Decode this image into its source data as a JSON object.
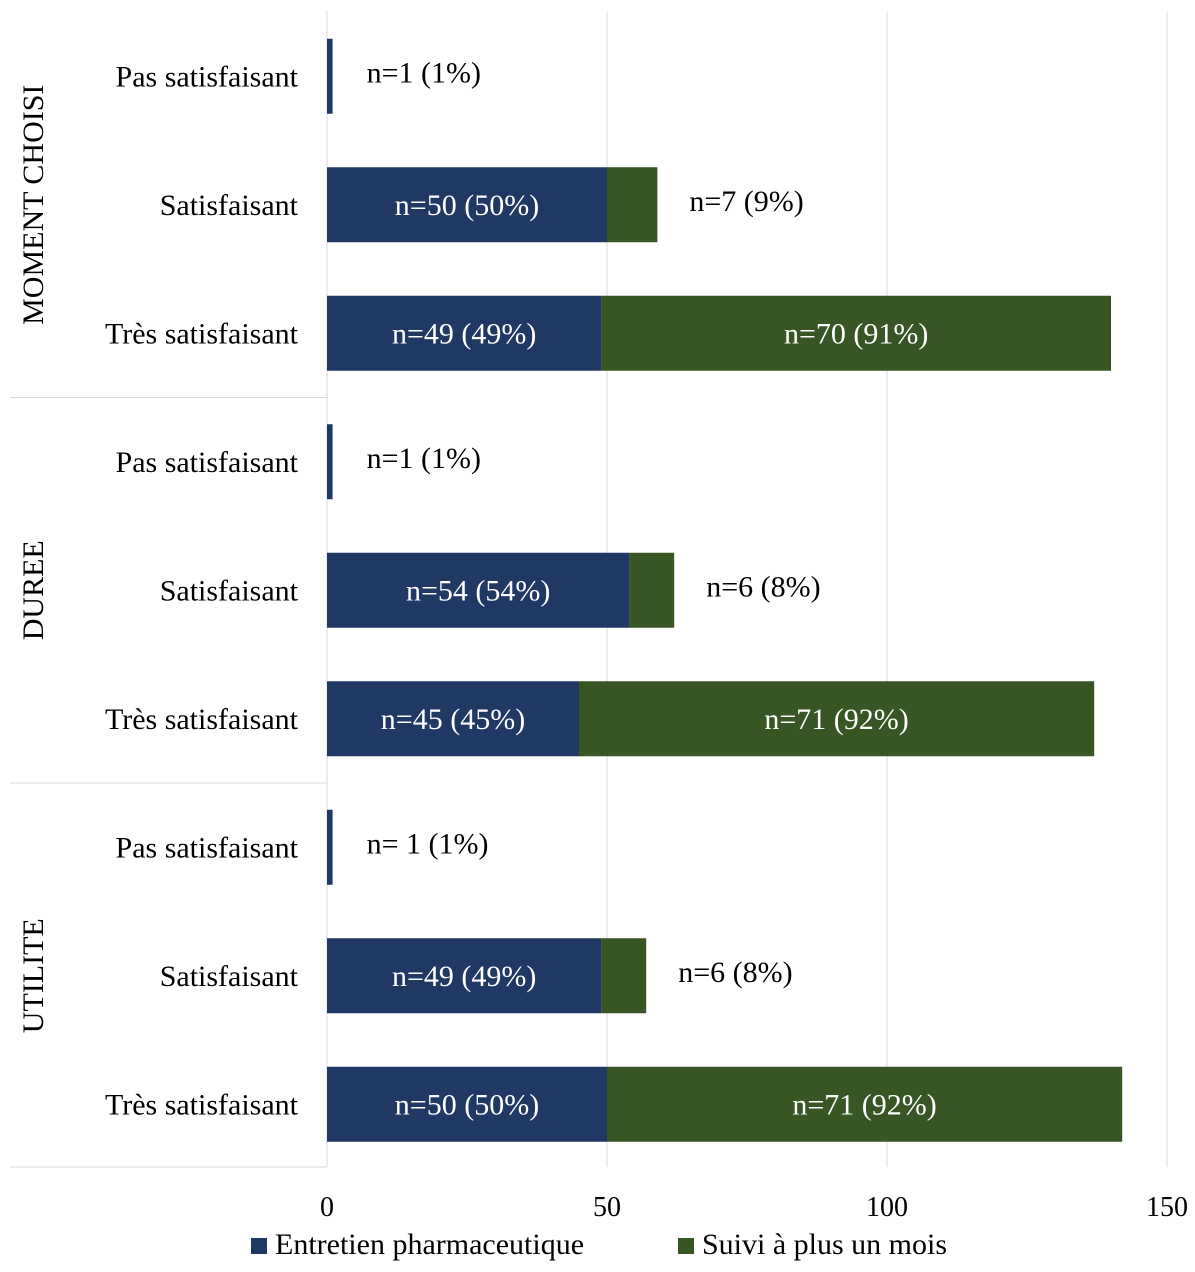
{
  "chart_data": {
    "type": "bar",
    "orientation": "horizontal",
    "stacked": true,
    "xlim": [
      0,
      150
    ],
    "xticks": [
      0,
      50,
      100,
      150
    ],
    "grid": true,
    "legend_position": "bottom",
    "series": [
      {
        "name": "Entretien pharmaceutique",
        "color": "#1f3864"
      },
      {
        "name": "Suivi à plus un mois",
        "color": "#375623"
      }
    ],
    "groups": [
      {
        "label": "MOMENT CHOISI",
        "rows": [
          {
            "label": "Pas satisfaisant",
            "values": [
              1,
              0
            ],
            "labels": [
              "n=1 (1%)",
              ""
            ]
          },
          {
            "label": "Satisfaisant",
            "values": [
              50,
              9
            ],
            "labels": [
              "n=50 (50%)",
              "n=7 (9%)"
            ]
          },
          {
            "label": "Très satisfaisant",
            "values": [
              49,
              91
            ],
            "labels": [
              "n=49 (49%)",
              "n=70 (91%)"
            ]
          }
        ]
      },
      {
        "label": "DUREE",
        "rows": [
          {
            "label": "Pas satisfaisant",
            "values": [
              1,
              0
            ],
            "labels": [
              "n=1 (1%)",
              ""
            ]
          },
          {
            "label": "Satisfaisant",
            "values": [
              54,
              8
            ],
            "labels": [
              "n=54 (54%)",
              "n=6 (8%)"
            ]
          },
          {
            "label": "Très satisfaisant",
            "values": [
              45,
              92
            ],
            "labels": [
              "n=45 (45%)",
              "n=71 (92%)"
            ]
          }
        ]
      },
      {
        "label": "UTILITE",
        "rows": [
          {
            "label": "Pas satisfaisant",
            "values": [
              1,
              0
            ],
            "labels": [
              "n= 1 (1%)",
              ""
            ]
          },
          {
            "label": "Satisfaisant",
            "values": [
              49,
              8
            ],
            "labels": [
              "n=49 (49%)",
              "n=6 (8%)"
            ]
          },
          {
            "label": "Très satisfaisant",
            "values": [
              50,
              92
            ],
            "labels": [
              "n=50 (50%)",
              "n=71 (92%)"
            ]
          }
        ]
      }
    ]
  }
}
